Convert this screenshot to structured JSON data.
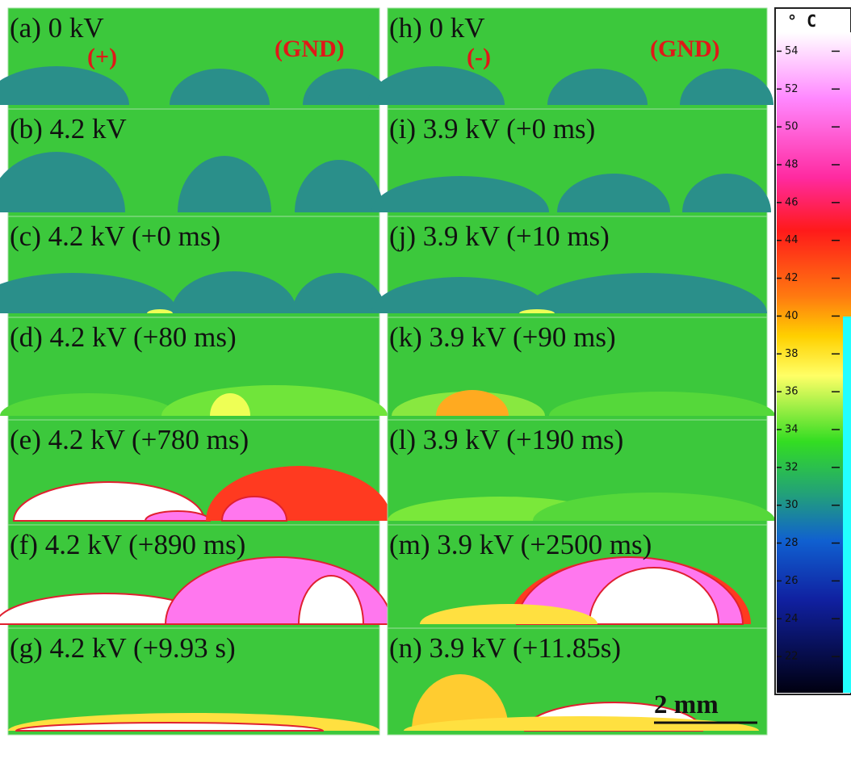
{
  "panels": [
    {
      "label": "(a) 0 kV"
    },
    {
      "label": "(b) 4.2 kV"
    },
    {
      "label": "(c) 4.2 kV (+0 ms)"
    },
    {
      "label": "(d) 4.2 kV (+80 ms)"
    },
    {
      "label": "(e) 4.2 kV (+780 ms)"
    },
    {
      "label": "(f) 4.2 kV (+890 ms)"
    },
    {
      "label": "(g) 4.2 kV (+9.93 s)"
    },
    {
      "label": "(h) 0 kV"
    },
    {
      "label": "(i) 3.9 kV (+0 ms)"
    },
    {
      "label": "(j) 3.9 kV (+10 ms)"
    },
    {
      "label": "(k) 3.9 kV (+90 ms)"
    },
    {
      "label": "(l) 3.9 kV (+190 ms)"
    },
    {
      "label": "(m) 3.9 kV (+2500 ms)"
    },
    {
      "label": "(n) 3.9 kV (+11.85s)"
    }
  ],
  "annotations": {
    "left_electrode": "(+)",
    "left_ground": "(GND)",
    "right_electrode": "(-)",
    "right_ground": "(GND)"
  },
  "colorbar": {
    "unit": "° C",
    "lim": [
      20,
      55
    ],
    "ticks": [
      54,
      52,
      50,
      48,
      46,
      44,
      42,
      40,
      38,
      36,
      34,
      32,
      30,
      28,
      26,
      24,
      22
    ]
  },
  "scale_bar": "2 mm"
}
